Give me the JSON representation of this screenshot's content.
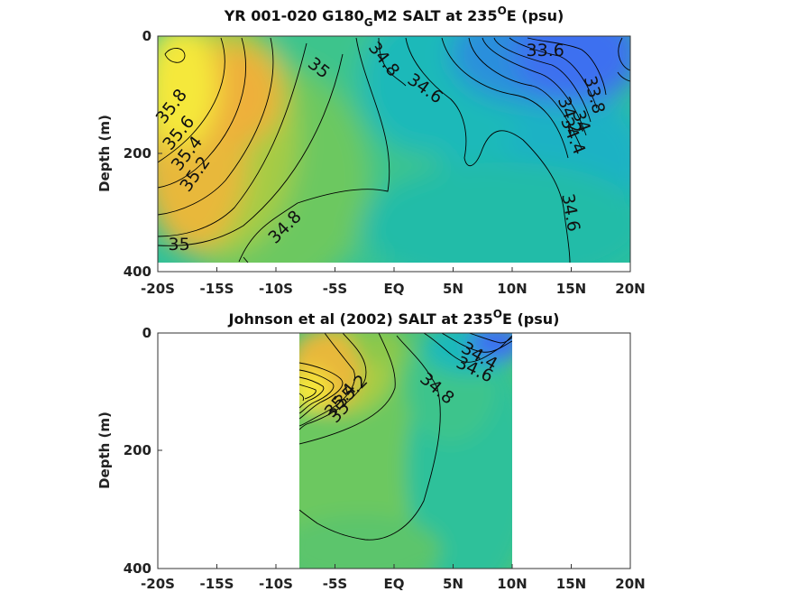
{
  "chart_data": [
    {
      "type": "heatmap",
      "title": "YR 001-020 G180",
      "title_sub": "G",
      "title_rest": "M2 SALT at 235",
      "title_sup": "O",
      "title_end": "E (psu)",
      "ylabel": "Depth (m)",
      "xlabel": "",
      "xlim": [
        -20,
        20
      ],
      "ylim": [
        0,
        400
      ],
      "y_reversed": true,
      "x_ticks": [
        "-20S",
        "-15S",
        "-10S",
        "-5S",
        "EQ",
        "5N",
        "10N",
        "15N",
        "20N"
      ],
      "y_ticks": [
        "0",
        "200",
        "400"
      ],
      "data_extent": {
        "lat": [
          -20,
          20
        ],
        "depth": [
          0,
          385
        ]
      },
      "colormap": [
        "#3d6ff0",
        "#1fb9b9",
        "#2ec19a",
        "#6cc860",
        "#a6cc44",
        "#e8b83a",
        "#f5e83a"
      ],
      "contour_labels": [
        {
          "text": "35.8",
          "lat": -18.8,
          "depth": 120
        },
        {
          "text": "35.6",
          "lat": -18.2,
          "depth": 165
        },
        {
          "text": "35.4",
          "lat": -17.5,
          "depth": 200
        },
        {
          "text": "35.2",
          "lat": -16.8,
          "depth": 235
        },
        {
          "text": "35",
          "lat": -18.2,
          "depth": 355
        },
        {
          "text": "34.8",
          "lat": -9.2,
          "depth": 325
        },
        {
          "text": "35",
          "lat": -6.4,
          "depth": 55
        },
        {
          "text": "34.8",
          "lat": -0.9,
          "depth": 40
        },
        {
          "text": "34.6",
          "lat": 2.6,
          "depth": 90
        },
        {
          "text": "33.6",
          "lat": 12.8,
          "depth": 25
        },
        {
          "text": "33.8",
          "lat": 16.9,
          "depth": 100
        },
        {
          "text": "34",
          "lat": 15.8,
          "depth": 145
        },
        {
          "text": "34.2",
          "lat": 14.8,
          "depth": 135
        },
        {
          "text": "34.4",
          "lat": 15.1,
          "depth": 170
        },
        {
          "text": "34.6",
          "lat": 14.9,
          "depth": 300
        }
      ]
    },
    {
      "type": "heatmap",
      "title": "Johnson et al (2002) SALT at 235",
      "title_sup": "O",
      "title_end": "E (psu)",
      "ylabel": "Depth (m)",
      "xlabel": "",
      "xlim": [
        -20,
        20
      ],
      "ylim": [
        0,
        400
      ],
      "y_reversed": true,
      "x_ticks": [
        "-20S",
        "-15S",
        "-10S",
        "-5S",
        "EQ",
        "5N",
        "10N",
        "15N",
        "20N"
      ],
      "y_ticks": [
        "0",
        "200",
        "400"
      ],
      "data_extent": {
        "lat": [
          -8,
          10
        ],
        "depth": [
          0,
          400
        ]
      },
      "colormap": [
        "#3d6ff0",
        "#1fb9b9",
        "#2ec19a",
        "#6cc860",
        "#a6cc44",
        "#e8b83a",
        "#f5e83a"
      ],
      "contour_labels": [
        {
          "text": "35.4",
          "lat": -4.5,
          "depth": 115
        },
        {
          "text": "35.2",
          "lat": -3.6,
          "depth": 100
        },
        {
          "text": "35",
          "lat": -4.6,
          "depth": 135
        },
        {
          "text": "34.8",
          "lat": 3.6,
          "depth": 95
        },
        {
          "text": "34.4",
          "lat": 7.2,
          "depth": 40
        },
        {
          "text": "34.6",
          "lat": 6.8,
          "depth": 63
        }
      ]
    }
  ]
}
